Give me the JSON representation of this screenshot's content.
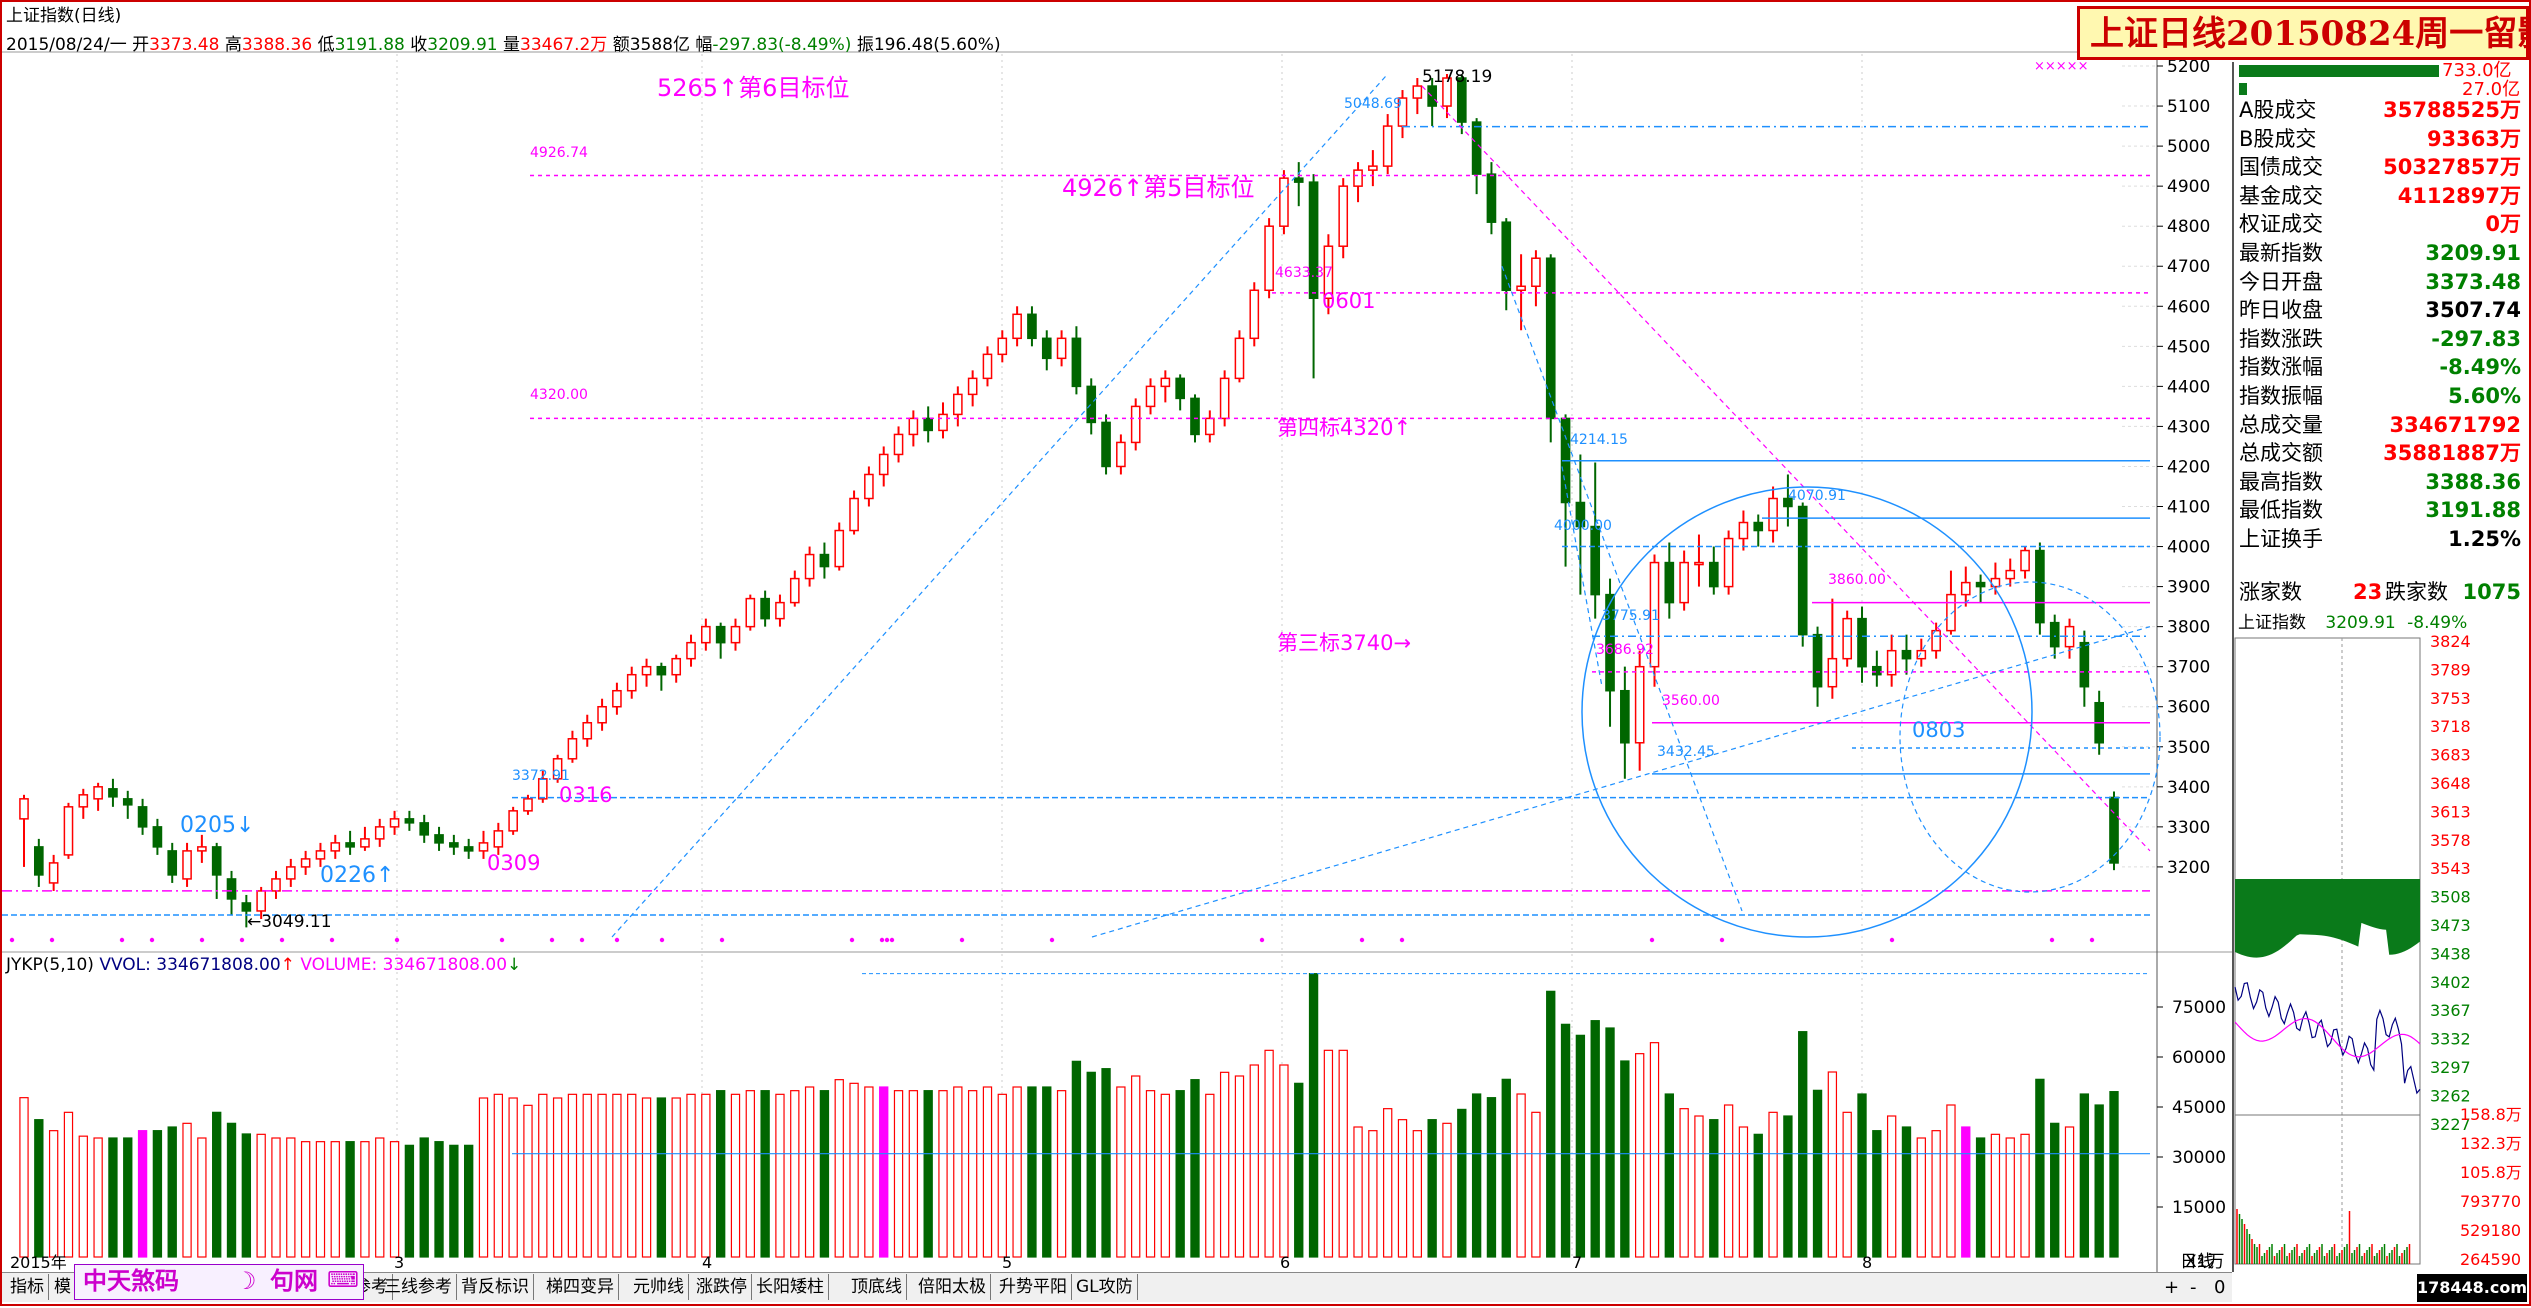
{
  "header": {
    "title": "上证指数(日线)",
    "info_date": "2015/08/24/一",
    "open_label": "开",
    "open": "3373.48",
    "high_label": "高",
    "high": "3388.36",
    "low_label": "低",
    "low": "3191.88",
    "close_label": "收",
    "close": "3209.91",
    "vol_label": "量",
    "vol": "33467.2万",
    "amt_label": "额",
    "amt": "3588亿",
    "chg_label": "幅",
    "chg": "-297.83(-8.49%)",
    "amp_label": "振",
    "amp": "196.48(5.60%)"
  },
  "banner": {
    "text": "上证日线20150824周一留影"
  },
  "main_annotations": [
    "5265↑第6目标位",
    "4926↑第5目标位",
    "第四标4320↑",
    "第三标3740→",
    "0205↓",
    "0226↑",
    "0309",
    "0316",
    "0601",
    "0803",
    "4926.74",
    "4320.00",
    "4633.37",
    "5178.19",
    "5048.69",
    "4214.15",
    "4070.91",
    "4000.00",
    "3860.00",
    "3775.91",
    "3686.92",
    "3560.00",
    "3432.45",
    "3372.91",
    "←3049.11"
  ],
  "colors": {
    "up": "#ff0000",
    "down": "#006600",
    "magenta": "#ff00ff",
    "blue": "#1e90ff",
    "axis": "#000000"
  },
  "chart_data": {
    "type": "candlestick",
    "title": "上证指数(日线)",
    "price_axis": {
      "ticks": [
        3200,
        3300,
        3400,
        3500,
        3600,
        3700,
        3800,
        3900,
        4000,
        4100,
        4200,
        4300,
        4400,
        4500,
        4600,
        4700,
        4800,
        4900,
        5000,
        5100,
        5200
      ],
      "tick_labels": [
        "3200",
        "3300",
        "3400",
        "3500",
        "3600",
        "3700",
        "3800",
        "3900",
        "4000",
        "4100",
        "4200",
        "4300",
        "4400",
        "4500",
        "4600",
        "4700",
        "4800",
        "4900",
        "5000",
        "5100",
        "5200"
      ],
      "range": [
        3000,
        5230
      ]
    },
    "month_labels": [
      "2015年",
      "3",
      "4",
      "5",
      "6",
      "7",
      "8"
    ],
    "candles": [
      [
        3320,
        3370,
        3380,
        3200
      ],
      [
        3250,
        3180,
        3270,
        3150
      ],
      [
        3160,
        3210,
        3230,
        3140
      ],
      [
        3230,
        3350,
        3360,
        3220
      ],
      [
        3350,
        3380,
        3395,
        3320
      ],
      [
        3370,
        3400,
        3410,
        3340
      ],
      [
        3395,
        3375,
        3420,
        3350
      ],
      [
        3370,
        3355,
        3390,
        3320
      ],
      [
        3350,
        3300,
        3370,
        3280
      ],
      [
        3300,
        3250,
        3320,
        3230
      ],
      [
        3240,
        3180,
        3260,
        3160
      ],
      [
        3170,
        3240,
        3260,
        3150
      ],
      [
        3240,
        3250,
        3280,
        3210
      ],
      [
        3250,
        3180,
        3260,
        3120
      ],
      [
        3170,
        3120,
        3190,
        3080
      ],
      [
        3110,
        3090,
        3130,
        3049
      ],
      [
        3090,
        3140,
        3150,
        3070
      ],
      [
        3140,
        3170,
        3190,
        3120
      ],
      [
        3170,
        3200,
        3220,
        3150
      ],
      [
        3200,
        3220,
        3240,
        3180
      ],
      [
        3220,
        3240,
        3260,
        3200
      ],
      [
        3240,
        3260,
        3280,
        3220
      ],
      [
        3260,
        3250,
        3290,
        3230
      ],
      [
        3250,
        3270,
        3300,
        3240
      ],
      [
        3270,
        3300,
        3320,
        3250
      ],
      [
        3300,
        3320,
        3340,
        3280
      ],
      [
        3320,
        3310,
        3340,
        3290
      ],
      [
        3310,
        3280,
        3330,
        3260
      ],
      [
        3280,
        3260,
        3300,
        3240
      ],
      [
        3260,
        3250,
        3280,
        3230
      ],
      [
        3250,
        3240,
        3270,
        3220
      ],
      [
        3240,
        3260,
        3290,
        3220
      ],
      [
        3250,
        3290,
        3310,
        3230
      ],
      [
        3290,
        3340,
        3350,
        3280
      ],
      [
        3340,
        3370,
        3380,
        3330
      ],
      [
        3370,
        3420,
        3440,
        3360
      ],
      [
        3420,
        3470,
        3480,
        3410
      ],
      [
        3470,
        3520,
        3540,
        3460
      ],
      [
        3520,
        3560,
        3580,
        3500
      ],
      [
        3560,
        3600,
        3620,
        3540
      ],
      [
        3600,
        3640,
        3660,
        3580
      ],
      [
        3640,
        3680,
        3700,
        3620
      ],
      [
        3680,
        3700,
        3720,
        3650
      ],
      [
        3700,
        3680,
        3710,
        3640
      ],
      [
        3680,
        3720,
        3730,
        3660
      ],
      [
        3720,
        3760,
        3780,
        3700
      ],
      [
        3760,
        3800,
        3820,
        3740
      ],
      [
        3800,
        3760,
        3810,
        3720
      ],
      [
        3760,
        3800,
        3820,
        3740
      ],
      [
        3800,
        3870,
        3880,
        3790
      ],
      [
        3870,
        3820,
        3890,
        3800
      ],
      [
        3820,
        3860,
        3880,
        3800
      ],
      [
        3860,
        3920,
        3940,
        3850
      ],
      [
        3920,
        3980,
        4000,
        3900
      ],
      [
        3980,
        3950,
        4010,
        3920
      ],
      [
        3950,
        4040,
        4060,
        3940
      ],
      [
        4040,
        4120,
        4140,
        4030
      ],
      [
        4120,
        4180,
        4200,
        4100
      ],
      [
        4180,
        4230,
        4250,
        4150
      ],
      [
        4230,
        4280,
        4300,
        4210
      ],
      [
        4280,
        4320,
        4340,
        4250
      ],
      [
        4320,
        4290,
        4350,
        4260
      ],
      [
        4290,
        4330,
        4360,
        4270
      ],
      [
        4330,
        4380,
        4400,
        4300
      ],
      [
        4380,
        4420,
        4440,
        4350
      ],
      [
        4420,
        4480,
        4500,
        4400
      ],
      [
        4480,
        4520,
        4540,
        4460
      ],
      [
        4520,
        4580,
        4600,
        4500
      ],
      [
        4580,
        4520,
        4600,
        4500
      ],
      [
        4520,
        4470,
        4540,
        4440
      ],
      [
        4470,
        4520,
        4540,
        4450
      ],
      [
        4520,
        4400,
        4550,
        4380
      ],
      [
        4400,
        4310,
        4420,
        4280
      ],
      [
        4310,
        4200,
        4330,
        4180
      ],
      [
        4200,
        4260,
        4280,
        4180
      ],
      [
        4260,
        4350,
        4370,
        4240
      ],
      [
        4350,
        4400,
        4420,
        4330
      ],
      [
        4400,
        4420,
        4440,
        4360
      ],
      [
        4420,
        4370,
        4430,
        4340
      ],
      [
        4370,
        4280,
        4380,
        4260
      ],
      [
        4280,
        4320,
        4340,
        4260
      ],
      [
        4320,
        4420,
        4440,
        4300
      ],
      [
        4420,
        4520,
        4540,
        4410
      ],
      [
        4520,
        4640,
        4660,
        4500
      ],
      [
        4640,
        4800,
        4820,
        4620
      ],
      [
        4800,
        4920,
        4940,
        4780
      ],
      [
        4920,
        4910,
        4960,
        4850
      ],
      [
        4910,
        4620,
        4930,
        4420
      ],
      [
        4620,
        4750,
        4780,
        4580
      ],
      [
        4750,
        4900,
        4920,
        4720
      ],
      [
        4900,
        4940,
        4960,
        4860
      ],
      [
        4940,
        4950,
        4990,
        4900
      ],
      [
        4950,
        5050,
        5080,
        4930
      ],
      [
        5050,
        5120,
        5140,
        5020
      ],
      [
        5120,
        5150,
        5170,
        5080
      ],
      [
        5150,
        5100,
        5170,
        5050
      ],
      [
        5100,
        5170,
        5180,
        5070
      ],
      [
        5170,
        5060,
        5178,
        5030
      ],
      [
        5060,
        4930,
        5070,
        4880
      ],
      [
        4930,
        4810,
        4960,
        4780
      ],
      [
        4810,
        4640,
        4820,
        4590
      ],
      [
        4640,
        4650,
        4730,
        4540
      ],
      [
        4650,
        4720,
        4740,
        4600
      ],
      [
        4720,
        4320,
        4730,
        4260
      ],
      [
        4320,
        4110,
        4330,
        3950
      ],
      [
        4110,
        4050,
        4230,
        3880
      ],
      [
        4050,
        3880,
        4210,
        3820
      ],
      [
        3880,
        3640,
        3920,
        3550
      ],
      [
        3640,
        3510,
        3700,
        3420
      ],
      [
        3510,
        3700,
        3740,
        3440
      ],
      [
        3700,
        3960,
        3980,
        3650
      ],
      [
        3960,
        3860,
        4010,
        3820
      ],
      [
        3860,
        3960,
        3990,
        3840
      ],
      [
        3960,
        3960,
        4030,
        3900
      ],
      [
        3960,
        3900,
        4000,
        3880
      ],
      [
        3900,
        4020,
        4040,
        3880
      ],
      [
        4020,
        4060,
        4090,
        3990
      ],
      [
        4060,
        4040,
        4080,
        4000
      ],
      [
        4040,
        4120,
        4150,
        4010
      ],
      [
        4120,
        4100,
        4180,
        4050
      ],
      [
        4100,
        3780,
        4110,
        3750
      ],
      [
        3780,
        3650,
        3800,
        3600
      ],
      [
        3650,
        3720,
        3870,
        3620
      ],
      [
        3720,
        3820,
        3840,
        3700
      ],
      [
        3820,
        3700,
        3850,
        3660
      ],
      [
        3700,
        3680,
        3740,
        3650
      ],
      [
        3680,
        3740,
        3780,
        3650
      ],
      [
        3740,
        3720,
        3780,
        3680
      ],
      [
        3720,
        3740,
        3770,
        3700
      ],
      [
        3740,
        3790,
        3810,
        3720
      ],
      [
        3790,
        3880,
        3940,
        3780
      ],
      [
        3880,
        3910,
        3950,
        3850
      ],
      [
        3910,
        3900,
        3930,
        3860
      ],
      [
        3900,
        3920,
        3960,
        3880
      ],
      [
        3920,
        3940,
        3970,
        3900
      ],
      [
        3940,
        3990,
        4000,
        3920
      ],
      [
        3990,
        3810,
        4010,
        3780
      ],
      [
        3810,
        3750,
        3830,
        3720
      ],
      [
        3750,
        3800,
        3820,
        3720
      ],
      [
        3760,
        3650,
        3790,
        3600
      ],
      [
        3610,
        3510,
        3640,
        3480
      ],
      [
        3373.48,
        3209.91,
        3388.36,
        3191.88
      ]
    ],
    "volume_axis": {
      "ticks": [
        15000,
        30000,
        45000,
        60000,
        75000
      ],
      "tick_labels": [
        "15000",
        "30000",
        "45000",
        "60000",
        "75000"
      ],
      "range": [
        0,
        90000
      ]
    },
    "volume_series": [
      "JYKP(5,10)",
      "VVOL: 334671808.00",
      "VOLUME: 334671808.00"
    ],
    "volume_pattern": "derived from candles"
  },
  "side": {
    "bar1": "733.0亿",
    "bar2": "27.0亿",
    "rows": [
      {
        "k": "A股成交",
        "v": "35788525万",
        "c": "#ff0000"
      },
      {
        "k": "B股成交",
        "v": "93363万",
        "c": "#ff0000"
      },
      {
        "k": "国债成交",
        "v": "50327857万",
        "c": "#ff0000"
      },
      {
        "k": "基金成交",
        "v": "4112897万",
        "c": "#ff0000"
      },
      {
        "k": "权证成交",
        "v": "0万",
        "c": "#ff0000"
      },
      {
        "k": "最新指数",
        "v": "3209.91",
        "c": "#008000"
      },
      {
        "k": "今日开盘",
        "v": "3373.48",
        "c": "#008000"
      },
      {
        "k": "昨日收盘",
        "v": "3507.74",
        "c": "#000000"
      },
      {
        "k": "指数涨跌",
        "v": "-297.83",
        "c": "#008000"
      },
      {
        "k": "指数涨幅",
        "v": "-8.49%",
        "c": "#008000"
      },
      {
        "k": "指数振幅",
        "v": "5.60%",
        "c": "#008000"
      },
      {
        "k": "总成交量",
        "v": "334671792",
        "c": "#ff0000"
      },
      {
        "k": "总成交额",
        "v": "35881887万",
        "c": "#ff0000"
      },
      {
        "k": "最高指数",
        "v": "3388.36",
        "c": "#008000"
      },
      {
        "k": "最低指数",
        "v": "3191.88",
        "c": "#008000"
      },
      {
        "k": "上证换手",
        "v": "1.25%",
        "c": "#000000"
      }
    ],
    "rise_label": "涨家数",
    "rise": "23",
    "fall_label": "跌家数",
    "fall": "1075",
    "intraday_title": "上证指数",
    "intraday_price": "3209.91",
    "intraday_chg": "-8.49%",
    "intraday_ticks": [
      "3824",
      "3789",
      "3753",
      "3718",
      "3683",
      "3648",
      "3613",
      "3578",
      "3543",
      "3508",
      "3473",
      "3438",
      "3402",
      "3367",
      "3332",
      "3297",
      "3262",
      "3227"
    ],
    "intraday_vol_ticks": [
      "158.8万",
      "132.3万",
      "105.8万",
      "793770",
      "529180",
      "264590"
    ],
    "bottom_label": "日线",
    "watermark": "178448.com"
  },
  "footer": {
    "tabs": [
      "指标",
      "模",
      "□中天煞码",
      "□句网",
      "□",
      "参考",
      "三线参考",
      "背反标识",
      "梯四变异",
      "元帅线",
      "涨跌停",
      "长阳矮柱",
      "顶底线",
      "倍阳太极",
      "升势平阳",
      "GL攻防"
    ],
    "x1": "X1万"
  },
  "brand": {
    "text": "中天煞码",
    "text2": "句网"
  }
}
